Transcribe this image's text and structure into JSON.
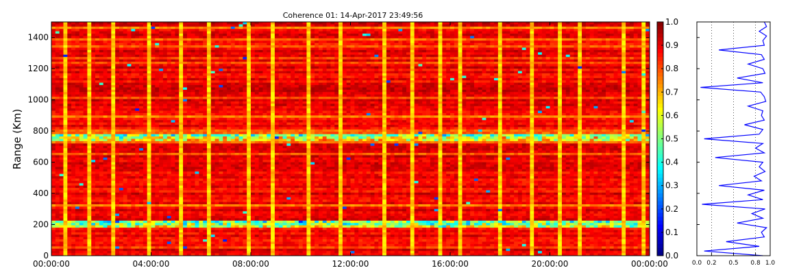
{
  "chart_data": [
    {
      "type": "heatmap",
      "title": "Coherence 01: 14-Apr-2017 23:49:56",
      "ylabel": "Range (Km)",
      "xlabel": "",
      "x_tick_labels": [
        "00:00:00",
        "04:00:00",
        "08:00:00",
        "12:00:00",
        "16:00:00",
        "20:00:00",
        "00:00:00"
      ],
      "x_tick_hours": [
        0,
        4,
        8,
        12,
        16,
        20,
        24
      ],
      "x_range_hours": [
        0,
        24
      ],
      "y_ticks": [
        0,
        200,
        400,
        600,
        800,
        1000,
        1200,
        1400
      ],
      "ylim": [
        0,
        1500
      ],
      "colorbar_ticks": [
        "0.0",
        "0.1",
        "0.2",
        "0.3",
        "0.4",
        "0.5",
        "0.6",
        "0.7",
        "0.8",
        "0.9",
        "1.0"
      ],
      "colorbar_range": [
        0,
        1
      ],
      "colormap": "jet",
      "grid": false,
      "value_summary": {
        "typical": 0.93,
        "low_range_bands_km": [
          200,
          760
        ],
        "vertical_stripe_hours": [
          0.45,
          1.45,
          2.35,
          3.85,
          5.15,
          6.25,
          7.85,
          8.75,
          10.25,
          11.45,
          13.3,
          14.45,
          15.45,
          16.25,
          17.9,
          19.25,
          20.35,
          21.15,
          22.85,
          23.75
        ]
      }
    },
    {
      "type": "line",
      "title": "",
      "xlabel": "",
      "ylabel": "",
      "x_tick_labels": [
        "0.0",
        "0.2",
        "0.5",
        "0.8",
        "1.0"
      ],
      "x_ticks": [
        0.0,
        0.2,
        0.5,
        0.8,
        1.0
      ],
      "xlim": [
        0,
        1
      ],
      "ylim": [
        0,
        1500
      ],
      "grid_x": [
        0.2,
        0.5,
        0.8
      ],
      "line_color": "#0000ff",
      "series": [
        {
          "range_km": [
            0,
            30,
            60,
            90,
            120,
            150,
            180,
            210,
            240,
            270,
            300,
            330,
            360,
            390,
            420,
            450,
            480,
            510,
            540,
            570,
            600,
            630,
            660,
            690,
            720,
            750,
            780,
            810,
            840,
            870,
            900,
            930,
            960,
            990,
            1020,
            1050,
            1080,
            1110,
            1140,
            1170,
            1200,
            1230,
            1260,
            1290,
            1320,
            1350,
            1380,
            1410,
            1440,
            1470,
            1500
          ],
          "values": [
            0.9,
            0.1,
            0.85,
            0.4,
            0.92,
            0.88,
            0.95,
            0.55,
            0.9,
            0.75,
            0.93,
            0.07,
            0.9,
            0.7,
            0.92,
            0.3,
            0.88,
            0.78,
            0.93,
            0.85,
            0.9,
            0.25,
            0.92,
            0.8,
            0.9,
            0.1,
            0.85,
            0.9,
            0.65,
            0.92,
            0.88,
            0.9,
            0.7,
            0.94,
            0.92,
            0.87,
            0.05,
            0.9,
            0.55,
            0.93,
            0.9,
            0.7,
            0.92,
            0.88,
            0.3,
            0.92,
            0.9,
            0.95,
            0.85,
            0.95,
            0.92
          ]
        }
      ]
    }
  ]
}
